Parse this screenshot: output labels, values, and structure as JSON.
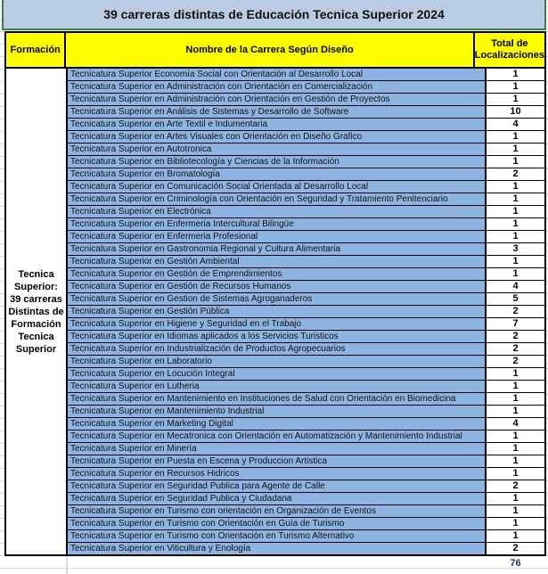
{
  "title": "39 carreras distintas de Educación Tecnica Superior 2024",
  "headers": {
    "formacion": "Formación",
    "nombre": "Nombre de la Carrera Según Diseño",
    "total": "Total de Localizaciones"
  },
  "formacion": "Tecnica Superior: 39 carreras Distintas de Formación Tecnica Superior",
  "rows": [
    {
      "name": "Tecnicatura Superior Economía Social con Orientación al Desarrollo Local",
      "value": "1"
    },
    {
      "name": "Tecnicatura Superior en Administración con Orientación en Comercialización",
      "value": "1"
    },
    {
      "name": "Tecnicatura Superior en Administración con Orientación en Gestión de Proyectos",
      "value": "1"
    },
    {
      "name": "Tecnicatura Superior en Análisis de Sistemas y Desarrollo de Software",
      "value": "10"
    },
    {
      "name": "Tecnicatura Superior en Arte Textil e Indumentaria",
      "value": "4"
    },
    {
      "name": "Tecnicatura Superior en Artes Visuales con Orientación en Diseño Grafico",
      "value": "1"
    },
    {
      "name": "Tecnicatura Superior en Autotronica",
      "value": "1"
    },
    {
      "name": "Tecnicatura Superior en Bibliotecología y Ciencias de la Información",
      "value": "1"
    },
    {
      "name": "Tecnicatura Superior en Bromatología",
      "value": "2"
    },
    {
      "name": "Tecnicatura Superior en Comunicación Social Orientada al Desarrollo Local",
      "value": "1"
    },
    {
      "name": "Tecnicatura Superior en Criminología con Orientación en Seguridad y Tratamiento Penitenciario",
      "value": "1"
    },
    {
      "name": "Tecnicatura Superior en Electrónica",
      "value": "1"
    },
    {
      "name": "Tecnicatura Superior en Enfermeria Intercultural Bilingüe",
      "value": "1"
    },
    {
      "name": "Tecnicatura Superior en Enfermeria Profesional",
      "value": "1"
    },
    {
      "name": "Tecnicatura Superior en Gastronomia Regional y Cultura Alimentaria",
      "value": "3"
    },
    {
      "name": "Tecnicatura Superior en Gestión Ambiental",
      "value": "1"
    },
    {
      "name": "Tecnicatura Superior en Gestión de Emprendimientos",
      "value": "1"
    },
    {
      "name": "Tecnicatura Superior en Gestión de Recursos Humanos",
      "value": "4"
    },
    {
      "name": "Tecnicatura Superior en Gestion de Sistemas Agroganaderos",
      "value": "5"
    },
    {
      "name": "Tecnicatura Superior en Gestión Pública",
      "value": "2"
    },
    {
      "name": "Tecnicatura Superior en Higiene y Seguridad en el Trabajo",
      "value": "7"
    },
    {
      "name": "Tecnicatura Superior en Idiomas aplicados a los Servicios Turisticos",
      "value": "2"
    },
    {
      "name": "Tecnicatura Superior en Industrialización de Productos Agropecuarios",
      "value": "2"
    },
    {
      "name": "Tecnicatura Superior en Laboratorio",
      "value": "2"
    },
    {
      "name": "Tecnicatura Superior en Locución Integral",
      "value": "1"
    },
    {
      "name": "Tecnicatura Superior en Lutheria",
      "value": "1"
    },
    {
      "name": "Tecnicatura Superior en Mantenimiento en Instituciones de Salud con Orientación en Biomedicina",
      "value": "1"
    },
    {
      "name": "Tecnicatura Superior en Mantenimiento Industrial",
      "value": "1"
    },
    {
      "name": "Tecnicatura Superior en Marketing Digital",
      "value": "4"
    },
    {
      "name": "Tecnicatura Superior en Mecatronica con Orientación en Automatización y Mantenimiento Industrial",
      "value": "1"
    },
    {
      "name": "Tecnicatura Superior en Minería",
      "value": "1"
    },
    {
      "name": "Tecnicatura Superior en Puesta en Escena y Produccion Artistica",
      "value": "1"
    },
    {
      "name": "Tecnicatura Superior en Recursos Hidricos",
      "value": "1"
    },
    {
      "name": "Tecnicatura Superior en Seguridad Publica para Agente de Calle",
      "value": "2"
    },
    {
      "name": "Tecnicatura Superior en Seguridad Publica y Ciudadana",
      "value": "1"
    },
    {
      "name": "Tecnicatura Superior en Turismo con orientación en Organización de Eventos",
      "value": "1"
    },
    {
      "name": "Tecnicatura Superior en Turismo con Orientación en Guía de Turismo",
      "value": "1"
    },
    {
      "name": "Tecnicatura Superior en Turismo con Orientación en Turismo Alternativo",
      "value": "1"
    },
    {
      "name": "Tecnicatura Superior en Viticultura y Enología",
      "value": "2"
    }
  ],
  "total": "76",
  "colors": {
    "title_bg": "#b8cce4",
    "header_bg": "#ffff00",
    "row_bg": "#8db4e2"
  }
}
